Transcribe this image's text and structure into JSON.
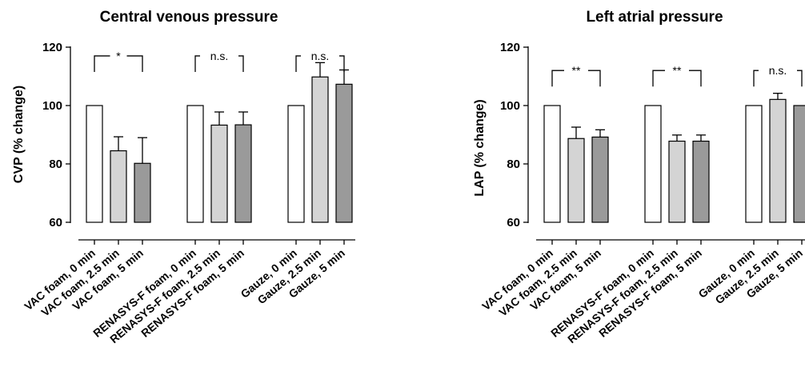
{
  "chart_data": [
    {
      "type": "bar",
      "title": "Central venous pressure",
      "ylabel": "CVP (% change)",
      "ylim": [
        60,
        120
      ],
      "yticks": [
        60,
        80,
        100,
        120
      ],
      "categories": [
        "VAC foam, 0 min",
        "VAC foam, 2.5 min",
        "VAC foam, 5 min",
        "RENASYS-F foam, 0 min",
        "RENASYS-F foam, 2.5 min",
        "RENASYS-F foam, 5 min",
        "Gauze, 0 min",
        "Gauze, 2.5 min",
        "Gauze, 5 min"
      ],
      "values": [
        100,
        84.5,
        80.2,
        100,
        93.3,
        93.4,
        100,
        109.8,
        107.3
      ],
      "errors": [
        0,
        4.8,
        8.8,
        0,
        4.5,
        4.4,
        0,
        4.9,
        4.9
      ],
      "bar_colors": [
        "#ffffff",
        "#d4d4d4",
        "#9a9a9a",
        "#ffffff",
        "#d4d4d4",
        "#9a9a9a",
        "#ffffff",
        "#d4d4d4",
        "#9a9a9a"
      ],
      "significance": [
        {
          "label": "*",
          "from": 0,
          "to": 2,
          "level": 117
        },
        {
          "label": "n.s.",
          "from": 3,
          "to": 5,
          "level": 117
        },
        {
          "label": "n.s.",
          "from": 6,
          "to": 8,
          "level": 117
        }
      ]
    },
    {
      "type": "bar",
      "title": "Left atrial pressure",
      "ylabel": "LAP (% change)",
      "ylim": [
        60,
        120
      ],
      "yticks": [
        60,
        80,
        100,
        120
      ],
      "categories": [
        "VAC foam, 0 min",
        "VAC foam, 2.5 min",
        "VAC foam, 5 min",
        "RENASYS-F foam, 0 min",
        "RENASYS-F foam, 2.5 min",
        "RENASYS-F foam, 5 min",
        "Gauze, 0 min",
        "Gauze, 2.5 min",
        "Gauze, 5 min"
      ],
      "values": [
        100,
        88.7,
        89.2,
        100,
        87.8,
        87.8,
        100,
        102.1,
        100
      ],
      "errors": [
        0,
        3.9,
        2.5,
        0,
        2.1,
        2.1,
        0,
        2.1,
        0
      ],
      "bar_colors": [
        "#ffffff",
        "#d4d4d4",
        "#9a9a9a",
        "#ffffff",
        "#d4d4d4",
        "#9a9a9a",
        "#ffffff",
        "#d4d4d4",
        "#9a9a9a"
      ],
      "significance": [
        {
          "label": "**",
          "from": 0,
          "to": 2,
          "level": 112
        },
        {
          "label": "**",
          "from": 3,
          "to": 5,
          "level": 112
        },
        {
          "label": "n.s.",
          "from": 6,
          "to": 8,
          "level": 112
        }
      ]
    }
  ]
}
